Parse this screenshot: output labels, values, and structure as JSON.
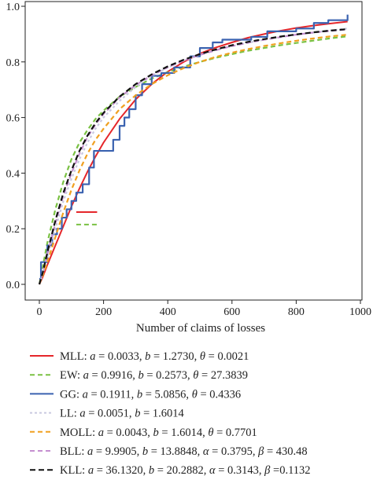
{
  "chart_data": {
    "type": "line",
    "title": "",
    "xlabel": "Number of claims of losses",
    "ylabel": "",
    "xlim": [
      0,
      1000
    ],
    "ylim": [
      0,
      1.0
    ],
    "x_ticks": [
      "0",
      "200",
      "400",
      "600",
      "800",
      "1000"
    ],
    "y_ticks": [
      "0.0",
      "0.2",
      "0.4",
      "0.6",
      "0.8",
      "1.0"
    ],
    "grid": false,
    "legend_position": "below",
    "series": [
      {
        "name": "MLL: a = 0.0033, b = 1.2730, θ = 0.0021",
        "color": "#e5262a",
        "dash": "solid",
        "x": [
          0,
          10,
          25,
          50,
          75,
          100,
          125,
          150,
          175,
          200,
          250,
          300,
          350,
          400,
          450,
          500,
          550,
          600,
          650,
          700,
          750,
          800,
          850,
          900,
          960
        ],
        "y": [
          0,
          0.025,
          0.07,
          0.14,
          0.21,
          0.28,
          0.345,
          0.405,
          0.46,
          0.51,
          0.595,
          0.665,
          0.72,
          0.765,
          0.8,
          0.83,
          0.852,
          0.87,
          0.887,
          0.9,
          0.912,
          0.922,
          0.93,
          0.937,
          0.945
        ]
      },
      {
        "name": "EW: a = 0.9916, b = 0.2573, θ = 27.3839",
        "color": "#7ac143",
        "dash": "6,4",
        "x": [
          0,
          10,
          25,
          50,
          75,
          100,
          125,
          150,
          175,
          200,
          250,
          300,
          350,
          400,
          450,
          500,
          550,
          600,
          650,
          700,
          750,
          800,
          850,
          900,
          960
        ],
        "y": [
          0,
          0.06,
          0.15,
          0.27,
          0.37,
          0.45,
          0.51,
          0.555,
          0.595,
          0.625,
          0.675,
          0.71,
          0.74,
          0.763,
          0.783,
          0.8,
          0.815,
          0.828,
          0.84,
          0.85,
          0.86,
          0.868,
          0.876,
          0.884,
          0.892
        ]
      },
      {
        "name": "GG: a = 0.1911, b = 5.0856, θ = 0.4336",
        "color": "#3a62b0",
        "dash": "solid",
        "x": [
          0,
          5,
          25,
          40,
          55,
          70,
          85,
          100,
          115,
          135,
          155,
          170,
          230,
          250,
          265,
          280,
          300,
          320,
          350,
          380,
          420,
          470,
          500,
          540,
          570,
          610,
          660,
          710,
          760,
          800,
          855,
          900,
          960
        ],
        "y": [
          0.02,
          0.08,
          0.14,
          0.18,
          0.2,
          0.24,
          0.27,
          0.3,
          0.33,
          0.36,
          0.42,
          0.48,
          0.52,
          0.57,
          0.6,
          0.63,
          0.68,
          0.72,
          0.75,
          0.76,
          0.78,
          0.82,
          0.85,
          0.87,
          0.88,
          0.88,
          0.89,
          0.91,
          0.91,
          0.92,
          0.94,
          0.95,
          0.97
        ]
      },
      {
        "name": "LL: a = 0.0051, b = 1.6014",
        "color": "#c9c9e0",
        "dash": "3,3",
        "x": [
          0,
          10,
          25,
          50,
          75,
          100,
          125,
          150,
          175,
          200,
          250,
          300,
          350,
          400,
          450,
          500,
          550,
          600,
          650,
          700,
          750,
          800,
          850,
          900,
          960
        ],
        "y": [
          0,
          0.035,
          0.1,
          0.2,
          0.3,
          0.38,
          0.45,
          0.51,
          0.56,
          0.6,
          0.66,
          0.71,
          0.75,
          0.78,
          0.805,
          0.826,
          0.843,
          0.857,
          0.869,
          0.88,
          0.889,
          0.898,
          0.905,
          0.912,
          0.92
        ]
      },
      {
        "name": "MOLL: a = 0.0043, b = 1.6014, θ = 0.7701",
        "color": "#f0a020",
        "dash": "6,4",
        "x": [
          0,
          10,
          25,
          50,
          75,
          100,
          125,
          150,
          175,
          200,
          250,
          300,
          350,
          400,
          450,
          500,
          550,
          600,
          650,
          700,
          750,
          800,
          850,
          900,
          960
        ],
        "y": [
          0,
          0.03,
          0.08,
          0.17,
          0.26,
          0.34,
          0.41,
          0.47,
          0.52,
          0.56,
          0.63,
          0.68,
          0.72,
          0.752,
          0.778,
          0.8,
          0.818,
          0.833,
          0.846,
          0.857,
          0.867,
          0.876,
          0.884,
          0.891,
          0.898
        ]
      },
      {
        "name": "BLL: a = 9.9905, b = 13.8848, α = 0.3795, β = 430.48",
        "color": "#c58fd0",
        "dash": "6,4",
        "x": [
          0,
          10,
          25,
          50,
          75,
          100,
          125,
          150,
          175,
          200,
          250,
          300,
          350,
          400,
          450,
          500,
          550,
          600,
          650,
          700,
          750,
          800,
          850,
          900,
          960
        ],
        "y": [
          0,
          0.04,
          0.11,
          0.22,
          0.32,
          0.4,
          0.47,
          0.53,
          0.575,
          0.613,
          0.672,
          0.717,
          0.752,
          0.781,
          0.805,
          0.825,
          0.842,
          0.857,
          0.869,
          0.88,
          0.889,
          0.898,
          0.905,
          0.911,
          0.917
        ]
      },
      {
        "name": "KLL: a = 36.1320, b = 20.2882, α = 0.3143, β =0.1132",
        "color": "#111111",
        "dash": "7,4",
        "x": [
          0,
          10,
          25,
          50,
          75,
          100,
          125,
          150,
          175,
          200,
          250,
          300,
          350,
          400,
          450,
          500,
          550,
          600,
          650,
          700,
          750,
          800,
          850,
          900,
          960
        ],
        "y": [
          0,
          0.04,
          0.115,
          0.23,
          0.33,
          0.41,
          0.48,
          0.535,
          0.58,
          0.617,
          0.675,
          0.72,
          0.755,
          0.784,
          0.808,
          0.828,
          0.845,
          0.86,
          0.872,
          0.882,
          0.891,
          0.899,
          0.906,
          0.912,
          0.918
        ]
      }
    ],
    "annotations": [
      {
        "series": "MLL",
        "x": [
          115,
          180
        ],
        "y": 0.26,
        "color": "#e5262a",
        "dash": "solid"
      },
      {
        "series": "EW",
        "x": [
          115,
          180
        ],
        "y": 0.215,
        "color": "#7ac143",
        "dash": "6,4"
      }
    ]
  },
  "legend": {
    "entries": [
      {
        "prefix": "MLL: ",
        "parts": [
          [
            "a",
            " = 0.0033, "
          ],
          [
            "b",
            " = 1.2730, "
          ],
          [
            "θ",
            " = 0.0021"
          ]
        ]
      },
      {
        "prefix": "EW: ",
        "parts": [
          [
            "a",
            " = 0.9916, "
          ],
          [
            "b",
            " = 0.2573, "
          ],
          [
            "θ",
            " = 27.3839"
          ]
        ]
      },
      {
        "prefix": "GG: ",
        "parts": [
          [
            "a",
            " = 0.1911, "
          ],
          [
            "b",
            " = 5.0856, "
          ],
          [
            "θ",
            " = 0.4336"
          ]
        ]
      },
      {
        "prefix": "LL: ",
        "parts": [
          [
            "a",
            " = 0.0051, "
          ],
          [
            "b",
            " = 1.6014"
          ]
        ]
      },
      {
        "prefix": "MOLL: ",
        "parts": [
          [
            "a",
            " = 0.0043, "
          ],
          [
            "b",
            " = 1.6014, "
          ],
          [
            "θ",
            " = 0.7701"
          ]
        ]
      },
      {
        "prefix": "BLL: ",
        "parts": [
          [
            "a",
            " = 9.9905, "
          ],
          [
            "b",
            " = 13.8848, "
          ],
          [
            "α",
            " = 0.3795, "
          ],
          [
            "β",
            " = 430.48"
          ]
        ]
      },
      {
        "prefix": "KLL: ",
        "parts": [
          [
            "a",
            " = 36.1320, "
          ],
          [
            "b",
            " = 20.2882, "
          ],
          [
            "α",
            " = 0.3143, "
          ],
          [
            "β",
            " =0.1132"
          ]
        ]
      }
    ]
  }
}
